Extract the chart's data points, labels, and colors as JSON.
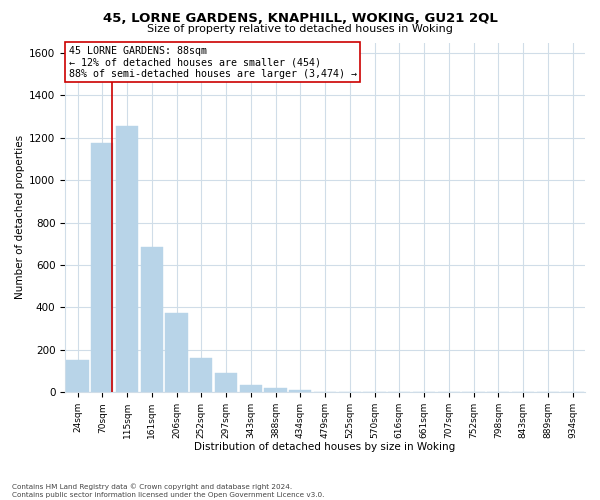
{
  "title": "45, LORNE GARDENS, KNAPHILL, WOKING, GU21 2QL",
  "subtitle": "Size of property relative to detached houses in Woking",
  "xlabel": "Distribution of detached houses by size in Woking",
  "ylabel": "Number of detached properties",
  "bar_labels": [
    "24sqm",
    "70sqm",
    "115sqm",
    "161sqm",
    "206sqm",
    "252sqm",
    "297sqm",
    "343sqm",
    "388sqm",
    "434sqm",
    "479sqm",
    "525sqm",
    "570sqm",
    "616sqm",
    "661sqm",
    "707sqm",
    "752sqm",
    "798sqm",
    "843sqm",
    "889sqm",
    "934sqm"
  ],
  "bar_values": [
    150,
    1175,
    1255,
    685,
    375,
    160,
    90,
    35,
    20,
    10,
    0,
    0,
    0,
    0,
    0,
    0,
    0,
    0,
    0,
    0,
    0
  ],
  "bar_color": "#b8d4e8",
  "marker_line_color": "#cc0000",
  "annotation_line1": "45 LORNE GARDENS: 88sqm",
  "annotation_line2": "← 12% of detached houses are smaller (454)",
  "annotation_line3": "88% of semi-detached houses are larger (3,474) →",
  "annotation_box_color": "#ffffff",
  "annotation_box_edge": "#cc0000",
  "ylim": [
    0,
    1650
  ],
  "yticks": [
    0,
    200,
    400,
    600,
    800,
    1000,
    1200,
    1400,
    1600
  ],
  "footer_line1": "Contains HM Land Registry data © Crown copyright and database right 2024.",
  "footer_line2": "Contains public sector information licensed under the Open Government Licence v3.0.",
  "background_color": "#ffffff",
  "grid_color": "#d0dde8"
}
